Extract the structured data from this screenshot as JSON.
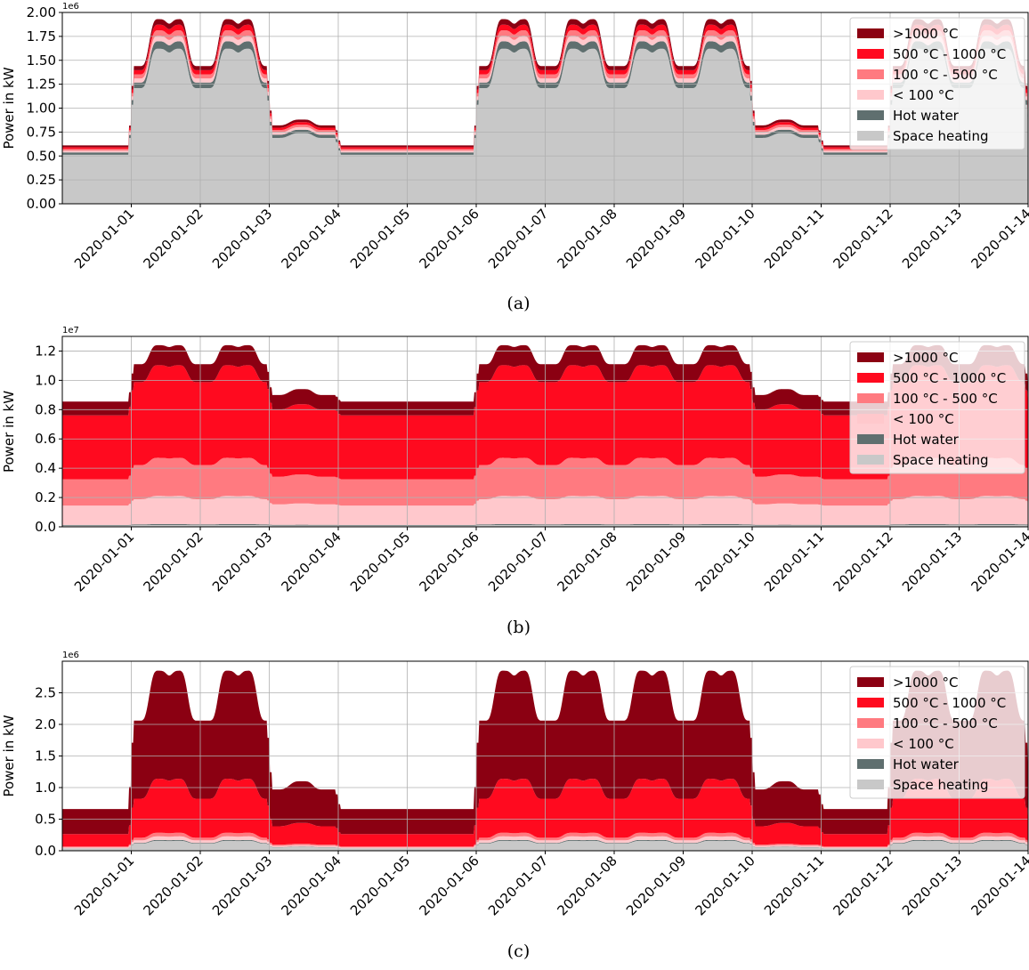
{
  "chart_data": [
    {
      "type": "area",
      "stacked": true,
      "caption": "(a)",
      "ylabel": "Power in kW",
      "y_offset_text": "1e6",
      "ylim": [
        0,
        2.0
      ],
      "y_ticks": [
        "0.00",
        "0.25",
        "0.50",
        "0.75",
        "1.00",
        "1.25",
        "1.50",
        "1.75",
        "2.00"
      ],
      "xlim": [
        "2020-01-00",
        "2020-01-14"
      ],
      "x_ticks": [
        "2020-01-01",
        "2020-01-02",
        "2020-01-03",
        "2020-01-04",
        "2020-01-05",
        "2020-01-06",
        "2020-01-07",
        "2020-01-08",
        "2020-01-09",
        "2020-01-10",
        "2020-01-11",
        "2020-01-12",
        "2020-01-13",
        "2020-01-14"
      ],
      "grid": true,
      "legend_position": "top-right",
      "legend": [
        ">1000 °C",
        "500 °C - 1000 °C",
        "100 °C - 500 °C",
        "< 100 °C",
        "Hot water",
        "Space heating"
      ],
      "series_stack_order": [
        "Space heating",
        "Hot water",
        "< 100 °C",
        "100 °C - 500 °C",
        "500 °C - 1000 °C",
        ">1000 °C"
      ],
      "total_profile": {
        "weekend_level": 0.61,
        "workday_base": 1.44,
        "workday_peak": 1.93,
        "saturday_base": 0.82,
        "saturday_peak": 0.88
      },
      "series_share": {
        "Space heating": 0.84,
        "Hot water": 0.04,
        "< 100 °C": 0.03,
        "100 °C - 500 °C": 0.03,
        "500 °C - 1000 °C": 0.03,
        ">1000 °C": 0.03
      }
    },
    {
      "type": "area",
      "stacked": true,
      "caption": "(b)",
      "ylabel": "Power in kW",
      "y_offset_text": "1e7",
      "ylim": [
        0,
        1.3
      ],
      "y_ticks": [
        "0.0",
        "0.2",
        "0.4",
        "0.6",
        "0.8",
        "1.0",
        "1.2"
      ],
      "xlim": [
        "2020-01-00",
        "2020-01-14"
      ],
      "x_ticks": [
        "2020-01-01",
        "2020-01-02",
        "2020-01-03",
        "2020-01-04",
        "2020-01-05",
        "2020-01-06",
        "2020-01-07",
        "2020-01-08",
        "2020-01-09",
        "2020-01-10",
        "2020-01-11",
        "2020-01-12",
        "2020-01-13",
        "2020-01-14"
      ],
      "grid": true,
      "legend_position": "top-right",
      "legend": [
        ">1000 °C",
        "500 °C - 1000 °C",
        "100 °C - 500 °C",
        "< 100 °C",
        "Hot water",
        "Space heating"
      ],
      "series_stack_order": [
        "Space heating",
        "Hot water",
        "< 100 °C",
        "100 °C - 500 °C",
        "500 °C - 1000 °C",
        ">1000 °C"
      ],
      "total_profile": {
        "weekend_level": 0.855,
        "workday_base": 1.11,
        "workday_peak": 1.24,
        "saturday_base": 0.9,
        "saturday_peak": 0.94
      },
      "series_share": {
        "Space heating": 0.01,
        "Hot water": 0.005,
        "< 100 °C": 0.155,
        "100 °C - 500 °C": 0.21,
        "500 °C - 1000 °C": 0.51,
        ">1000 °C": 0.11
      }
    },
    {
      "type": "area",
      "stacked": true,
      "caption": "(c)",
      "ylabel": "Power in kW",
      "y_offset_text": "1e6",
      "ylim": [
        0,
        3.0
      ],
      "y_ticks": [
        "0.0",
        "0.5",
        "1.0",
        "1.5",
        "2.0",
        "2.5"
      ],
      "xlim": [
        "2020-01-00",
        "2020-01-14"
      ],
      "x_ticks": [
        "2020-01-01",
        "2020-01-02",
        "2020-01-03",
        "2020-01-04",
        "2020-01-05",
        "2020-01-06",
        "2020-01-07",
        "2020-01-08",
        "2020-01-09",
        "2020-01-10",
        "2020-01-11",
        "2020-01-12",
        "2020-01-13",
        "2020-01-14"
      ],
      "grid": true,
      "legend_position": "top-right",
      "legend": [
        ">1000 °C",
        "500 °C - 1000 °C",
        "100 °C - 500 °C",
        "< 100 °C",
        "Hot water",
        "Space heating"
      ],
      "series_stack_order": [
        "Space heating",
        "Hot water",
        "< 100 °C",
        "100 °C - 500 °C",
        "500 °C - 1000 °C",
        ">1000 °C"
      ],
      "total_profile": {
        "weekend_level": 0.66,
        "workday_base": 2.06,
        "workday_peak": 2.85,
        "saturday_base": 0.97,
        "saturday_peak": 1.1
      },
      "series_share": {
        "Space heating": 0.055,
        "Hot water": 0.005,
        "< 100 °C": 0.02,
        "100 °C - 500 °C": 0.02,
        "500 °C - 1000 °C": 0.3,
        ">1000 °C": 0.6
      }
    }
  ],
  "colors": {
    ">1000 °C": "#8b0012",
    "500 °C - 1000 °C": "#ff0a1f",
    "100 °C - 500 °C": "#ff7a80",
    "< 100 °C": "#ffc8cc",
    "Hot water": "#5f6f6f",
    "Space heating": "#c8c8c8",
    "grid": "#b0b0b0",
    "axis": "#000000",
    "legend_face": "#ffffff"
  }
}
